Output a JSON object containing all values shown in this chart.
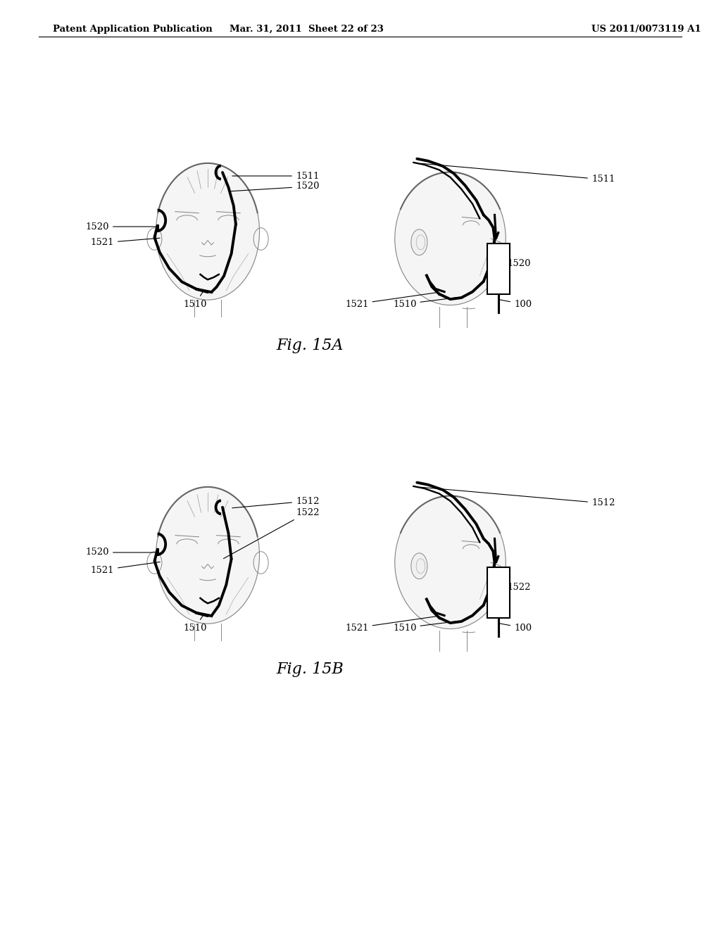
{
  "header_left": "Patent Application Publication",
  "header_mid": "Mar. 31, 2011  Sheet 22 of 23",
  "header_right": "US 2011/0073119 A1",
  "fig_a_label": "Fig. 15A",
  "fig_b_label": "Fig. 15B",
  "bg_color": "#ffffff",
  "line_color": "#000000",
  "text_color": "#000000",
  "header_fontsize": 9.5,
  "fig_label_fontsize": 16,
  "label_fontsize": 9.5,
  "gray_face": "#d8d8d8",
  "light_gray": "#ebebeb"
}
